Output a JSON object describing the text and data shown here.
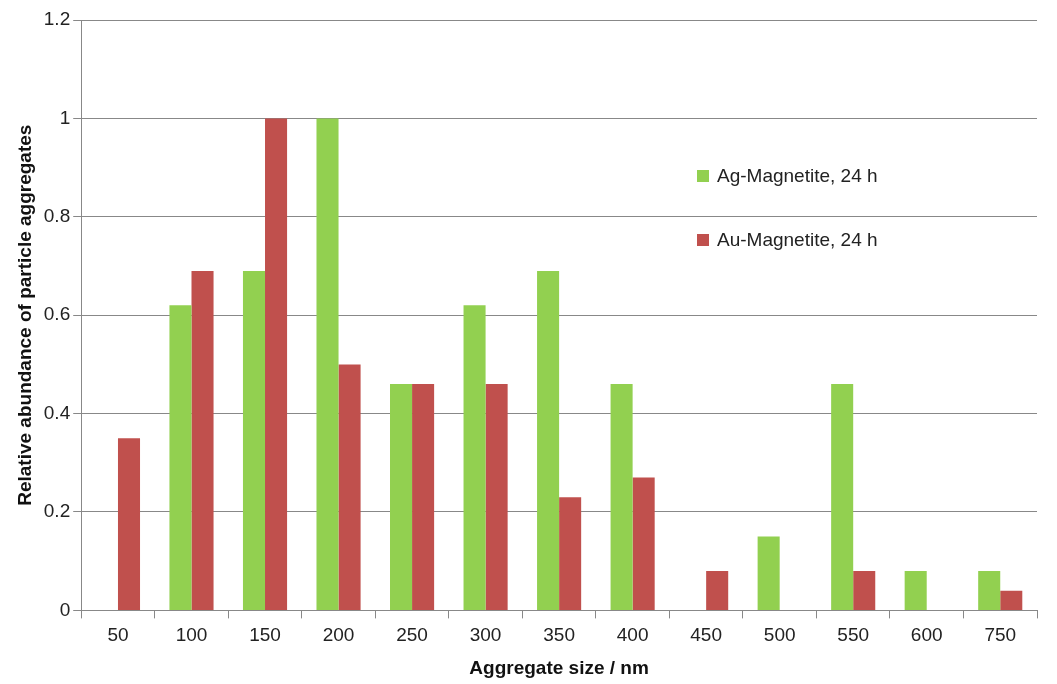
{
  "chart_data": {
    "type": "bar",
    "xlabel": "Aggregate size / nm",
    "ylabel": "Relative abundance of particle aggregates",
    "categories": [
      "50",
      "100",
      "150",
      "200",
      "250",
      "300",
      "350",
      "400",
      "450",
      "500",
      "550",
      "600",
      "750"
    ],
    "series": [
      {
        "name": "Ag-Magnetite, 24 h",
        "color": "#92d050",
        "values": [
          0,
          0.62,
          0.69,
          1,
          0.46,
          0.62,
          0.69,
          0.46,
          0,
          0.15,
          0.46,
          0.08,
          0.08
        ]
      },
      {
        "name": "Au-Magnetite, 24 h",
        "color": "#c0504d",
        "values": [
          0.35,
          0.69,
          1,
          0.5,
          0.46,
          0.46,
          0.23,
          0.27,
          0.08,
          0,
          0.08,
          0,
          0.04
        ]
      }
    ],
    "ylim": [
      0,
      1.2
    ],
    "yticks": [
      0,
      0.2,
      0.4,
      0.6,
      0.8,
      1,
      1.2
    ],
    "grid": "y",
    "legend": "right"
  }
}
